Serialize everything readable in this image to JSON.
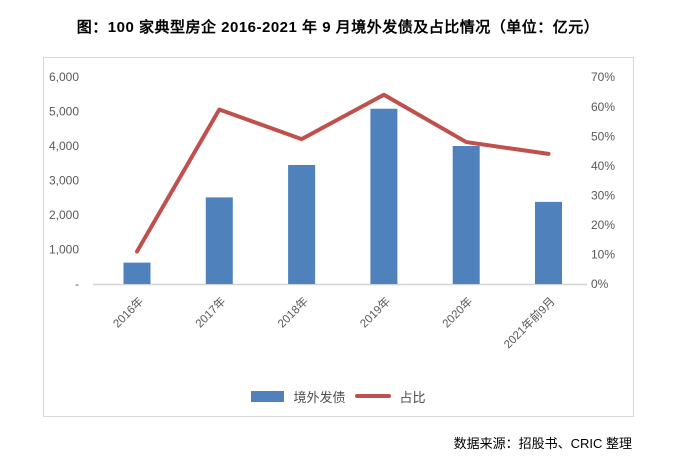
{
  "page": {
    "title": "图：100 家典型房企 2016-2021 年 9 月境外发债及占比情况（单位：亿元）",
    "source_note": "数据来源：招股书、CRIC 整理"
  },
  "legend": {
    "bar_label": "境外发债",
    "line_label": "占比"
  },
  "colors": {
    "bar": "#4F81BD",
    "line": "#C0504D",
    "axis_text": "#595959",
    "frame_border": "#D9D9D9",
    "baseline": "#D3D3D3",
    "title_text": "#000000"
  },
  "chart_data": {
    "type": "bar",
    "subtype": "combo-bar-line-dual-axis",
    "title": "图：100 家典型房企 2016-2021 年 9 月境外发债及占比情况（单位：亿元）",
    "categories": [
      "2016年",
      "2017年",
      "2018年",
      "2019年",
      "2020年",
      "2021年前9月"
    ],
    "series": [
      {
        "name": "境外发债",
        "type": "bar",
        "axis": "left",
        "unit": "亿元",
        "values": [
          620,
          2510,
          3450,
          5080,
          4000,
          2380
        ]
      },
      {
        "name": "占比",
        "type": "line",
        "axis": "right",
        "unit": "%",
        "values": [
          11,
          59,
          49,
          64,
          48,
          44
        ]
      }
    ],
    "left_axis": {
      "min": 0,
      "max": 6000,
      "step": 1000,
      "tick_labels": [
        "6,000",
        "5,000",
        "4,000",
        "3,000",
        "2,000",
        "1,000",
        "-"
      ]
    },
    "right_axis": {
      "min": 0,
      "max": 70,
      "step": 10,
      "tick_labels": [
        "70%",
        "60%",
        "50%",
        "40%",
        "30%",
        "20%",
        "10%",
        "0%"
      ]
    },
    "grid": false,
    "legend_position": "bottom-center",
    "xlabel": "",
    "ylabel_left": "亿元",
    "ylabel_right": "%"
  }
}
